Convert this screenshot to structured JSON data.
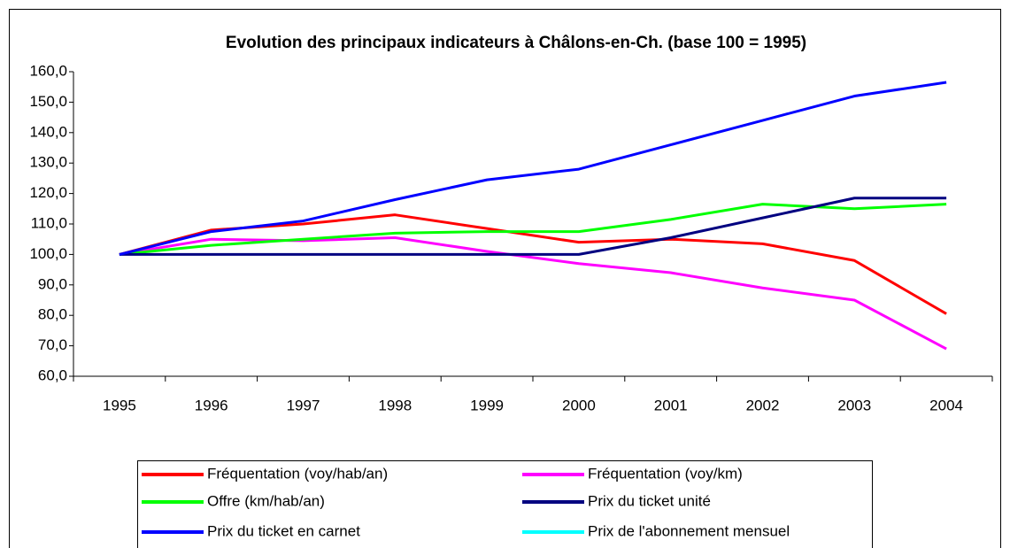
{
  "chart_data": {
    "type": "line",
    "title": "Evolution des principaux indicateurs à Châlons-en-Ch. (base 100 = 1995)",
    "categories": [
      "1995",
      "1996",
      "1997",
      "1998",
      "1999",
      "2000",
      "2001",
      "2002",
      "2003",
      "2004"
    ],
    "series": [
      {
        "name": "Fréquentation (voy/hab/an)",
        "color": "#ff0000",
        "values": [
          100,
          108,
          110,
          113,
          108.5,
          104,
          105,
          103.5,
          98,
          80.5
        ]
      },
      {
        "name": "Fréquentation (voy/km)",
        "color": "#ff00ff",
        "values": [
          100,
          105,
          104.5,
          105.5,
          101,
          97,
          94,
          89,
          85,
          69
        ]
      },
      {
        "name": "Offre (km/hab/an)",
        "color": "#00ff00",
        "values": [
          100,
          103,
          105,
          107,
          107.5,
          107.5,
          111.5,
          116.5,
          115,
          116.5
        ]
      },
      {
        "name": "Prix du ticket unité",
        "color": "#000080",
        "values": [
          100,
          100,
          100,
          100,
          100,
          100,
          105.5,
          112,
          118.5,
          118.5
        ]
      },
      {
        "name": "Prix du ticket en carnet",
        "color": "#0000ff",
        "values": [
          100,
          107.5,
          111,
          118,
          124.5,
          128,
          136,
          144,
          152,
          156.5
        ]
      },
      {
        "name": "Prix de l'abonnement mensuel",
        "color": "#00ffff",
        "values": [
          null,
          null,
          null,
          null,
          null,
          null,
          null,
          null,
          null,
          null
        ]
      }
    ],
    "ylim": [
      60,
      160
    ],
    "yticks": [
      {
        "value": 60,
        "label": "60,0"
      },
      {
        "value": 70,
        "label": "70,0"
      },
      {
        "value": 80,
        "label": "80,0"
      },
      {
        "value": 90,
        "label": "90,0"
      },
      {
        "value": 100,
        "label": "100,0"
      },
      {
        "value": 110,
        "label": "110,0"
      },
      {
        "value": 120,
        "label": "120,0"
      },
      {
        "value": 130,
        "label": "130,0"
      },
      {
        "value": 140,
        "label": "140,0"
      },
      {
        "value": 150,
        "label": "150,0"
      },
      {
        "value": 160,
        "label": "160,0"
      }
    ],
    "grid": false,
    "legend": "bottom"
  }
}
